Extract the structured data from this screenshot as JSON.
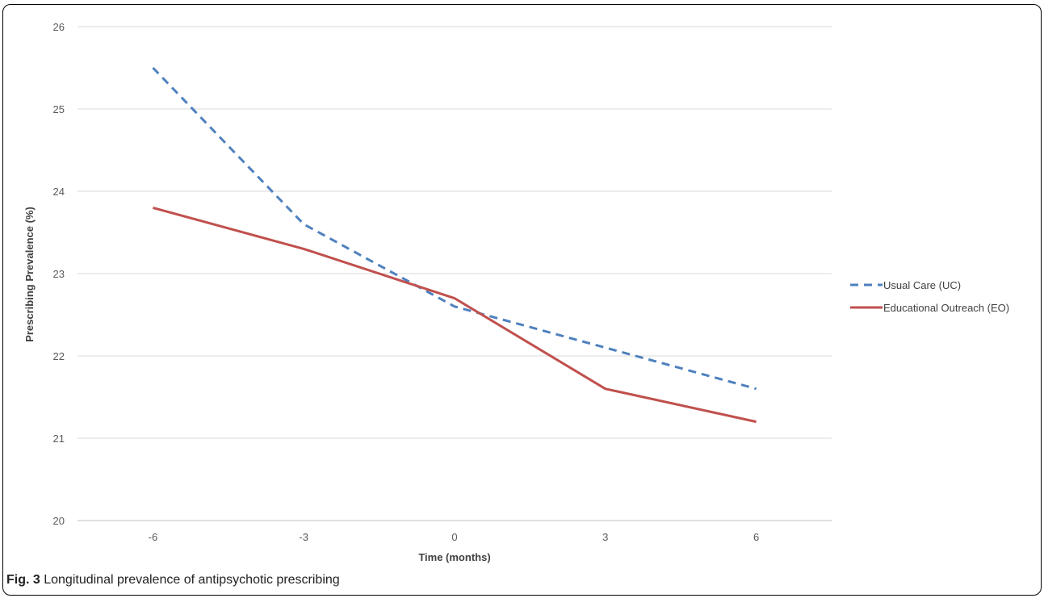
{
  "caption": {
    "label": "Fig. 3",
    "text": " Longitudinal prevalence of antipsychotic prescribing"
  },
  "chart_data": {
    "type": "line",
    "title": "",
    "xlabel": "Time (months)",
    "ylabel": "Prescribing Prevalence (%)",
    "categories": [
      "-6",
      "-3",
      "0",
      "3",
      "6"
    ],
    "ylim": [
      20,
      26
    ],
    "yticks": [
      "20",
      "21",
      "22",
      "23",
      "24",
      "25",
      "26"
    ],
    "grid": true,
    "legend_position": "right",
    "series": [
      {
        "name": "Usual Care (UC)",
        "values": [
          25.5,
          23.6,
          22.6,
          22.1,
          21.6
        ],
        "color": "#4f81bd",
        "style": "dashed"
      },
      {
        "name": "Educational Outreach (EO)",
        "values": [
          23.8,
          23.3,
          22.7,
          21.6,
          21.2
        ],
        "color": "#c0504d",
        "style": "solid"
      }
    ]
  }
}
